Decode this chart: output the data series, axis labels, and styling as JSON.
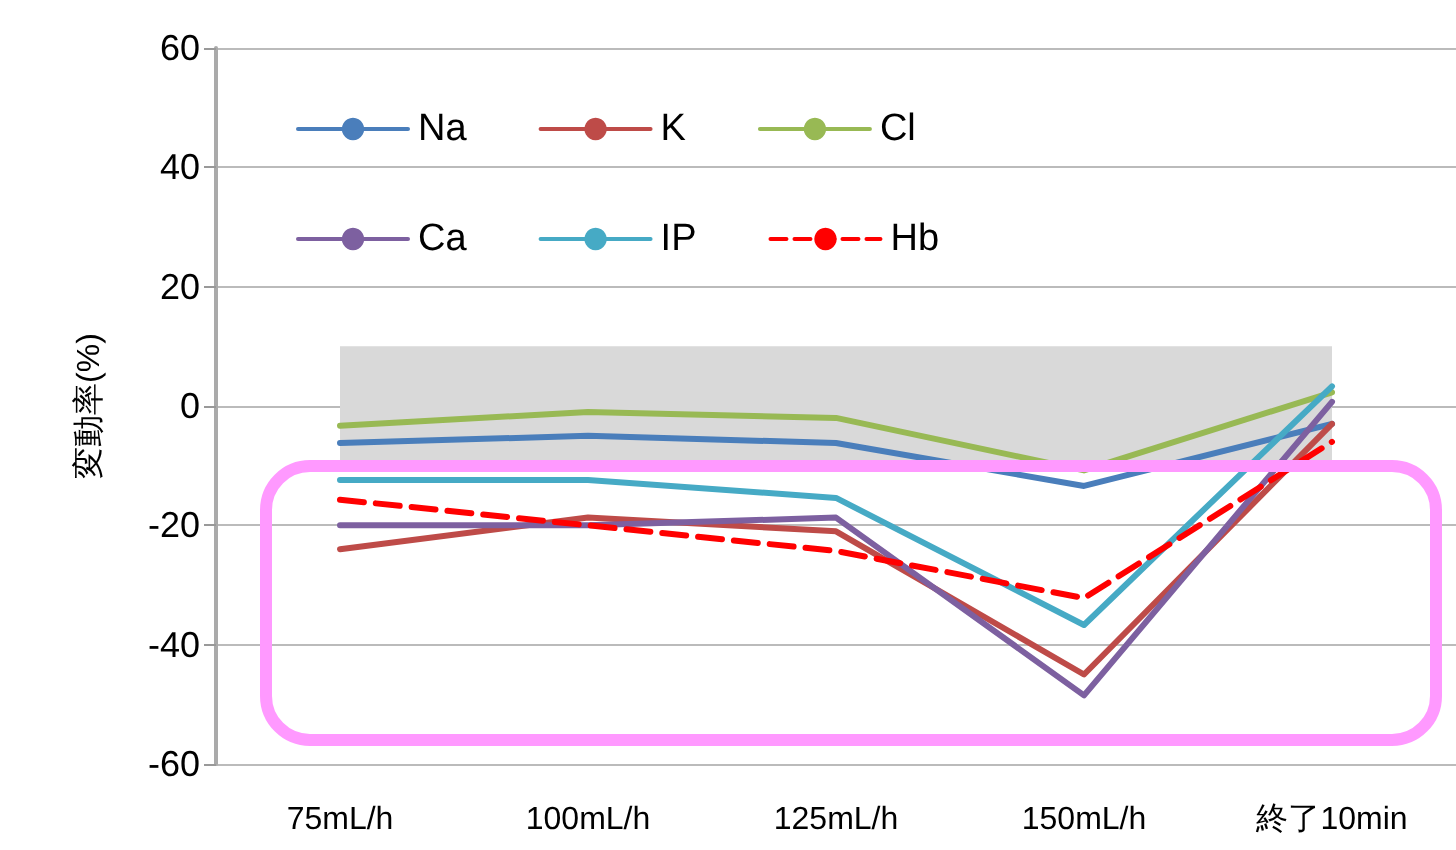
{
  "chart_data": {
    "type": "line",
    "ylabel": "変動率(%)",
    "categories": [
      "75mL/h",
      "100mL/h",
      "125mL/h",
      "150mL/h",
      "終了10min"
    ],
    "series": [
      {
        "name": "Na",
        "color": "#4a7ebb",
        "values": [
          -6.2,
          -5,
          -6.2,
          -13.4,
          -3
        ]
      },
      {
        "name": "K",
        "color": "#be4b48",
        "values": [
          -24,
          -18.7,
          -21,
          -45,
          -3
        ]
      },
      {
        "name": "Cl",
        "color": "#98b954",
        "values": [
          -3.3,
          -1,
          -2,
          -10.8,
          2.3
        ]
      },
      {
        "name": "Ca",
        "color": "#7d60a0",
        "values": [
          -20,
          -20,
          -18.7,
          -48.5,
          0.7
        ]
      },
      {
        "name": "IP",
        "color": "#46aac5",
        "values": [
          -12.4,
          -12.4,
          -15.4,
          -36.7,
          3.3
        ]
      },
      {
        "name": "Hb",
        "color": "#ff0000",
        "values": [
          -15.7,
          -20,
          -24.3,
          -32.2,
          -6
        ],
        "line_style": "dashed"
      }
    ],
    "ylim": [
      -60,
      60
    ],
    "yticks": [
      -60,
      -40,
      -20,
      0,
      20,
      40,
      60
    ],
    "bands": [
      {
        "axis": "y",
        "from": -10,
        "to": 10,
        "color": "#d9d9d9"
      }
    ],
    "grid": "y",
    "legend": "top left",
    "marker": "none",
    "line_style": "solid"
  }
}
